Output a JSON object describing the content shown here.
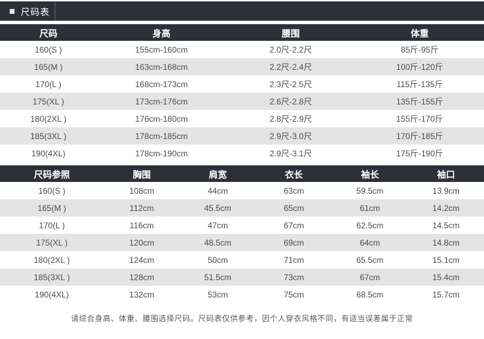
{
  "title_bar": {
    "label": "尺码表"
  },
  "colors": {
    "header_bg": "#2d3039",
    "header_text": "#ffffff",
    "row_bg": "#ffffff",
    "row_alt_bg": "#e4e4e4",
    "cell_text": "#4c4c4c",
    "note_text": "#595959"
  },
  "size_table": {
    "headers": [
      "尺码",
      "身高",
      "腰围",
      "体重"
    ],
    "rows": [
      [
        "160(S )",
        "155cm-160cm",
        "2.0尺-2.2尺",
        "85斤-95斤"
      ],
      [
        "165(M )",
        "163cm-168cm",
        "2.2尺-2.4尺",
        "100斤-120斤"
      ],
      [
        "170(L )",
        "168cm-173cm",
        "2.3尺-2.5尺",
        "115斤-135斤"
      ],
      [
        "175(XL )",
        "173cm-176cm",
        "2.6尺-2.8尺",
        "135斤-155斤"
      ],
      [
        "180(2XL )",
        "176cm-180cm",
        "2.8尺-2.9尺",
        "155斤-170斤"
      ],
      [
        "185(3XL )",
        "178cm-185cm",
        "2.9尺-3.0尺",
        "170斤-185斤"
      ],
      [
        "190(4XL)",
        "178cm-190cm",
        "2.9尺-3.1尺",
        "175斤-190斤"
      ]
    ]
  },
  "reference_table": {
    "headers": [
      "尺码参照",
      "胸围",
      "肩宽",
      "衣长",
      "袖长",
      "袖口"
    ],
    "rows": [
      [
        "160(S )",
        "108cm",
        "44cm",
        "63cm",
        "59.5cm",
        "13.9cm"
      ],
      [
        "165(M )",
        "112cm",
        "45.5cm",
        "65cm",
        "61cm",
        "14.2cm"
      ],
      [
        "170(L )",
        "116cm",
        "47cm",
        "67cm",
        "62.5cm",
        "14.5cm"
      ],
      [
        "175(XL )",
        "120cm",
        "48.5cm",
        "69cm",
        "64cm",
        "14.8cm"
      ],
      [
        "180(2XL )",
        "124cm",
        "50cm",
        "71cm",
        "65.5cm",
        "15.1cm"
      ],
      [
        "185(3XL )",
        "128cm",
        "51.5cm",
        "73cm",
        "67cm",
        "15.4cm"
      ],
      [
        "190(4XL)",
        "132cm",
        "53cm",
        "75cm",
        "68.5cm",
        "15.7cm"
      ]
    ]
  },
  "note": "请综合身高、体重、腰围选择尺码。尺码表仅供参考，因个人穿衣风格不同，有适当误差属于正常"
}
